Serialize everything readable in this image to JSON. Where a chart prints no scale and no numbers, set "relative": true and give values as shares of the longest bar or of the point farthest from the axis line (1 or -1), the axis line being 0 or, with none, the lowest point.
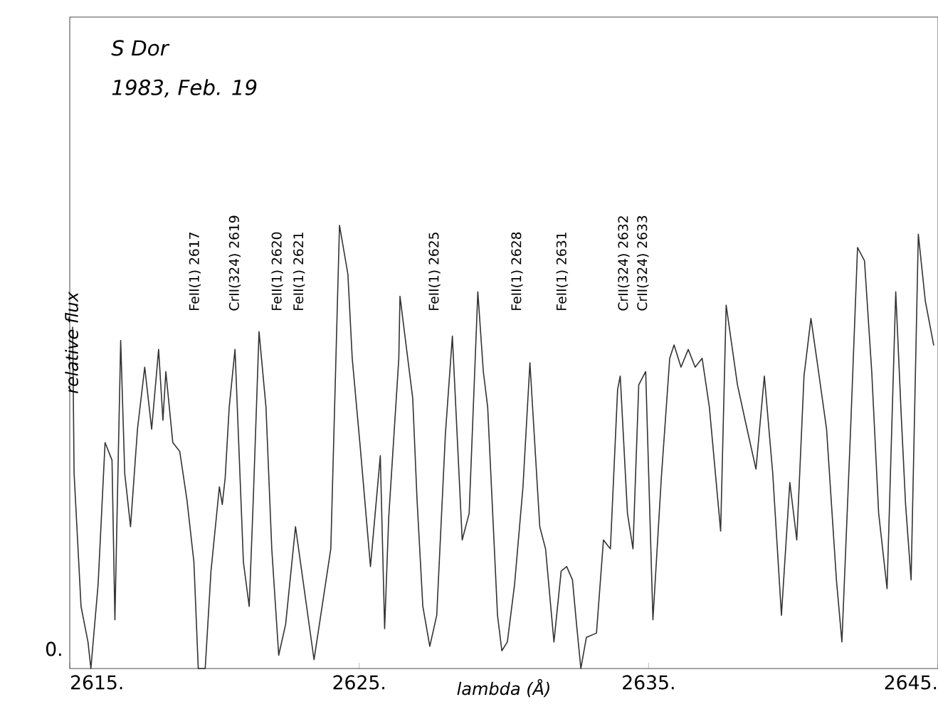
{
  "chart_data": {
    "type": "line",
    "title": "S Dor",
    "subtitle": "1983, Feb. 19",
    "xlabel": "lambda (Å)",
    "ylabel": "relative flux",
    "relative": true,
    "grid": false,
    "marker": "none",
    "line_style": "solid",
    "xlim": [
      2615,
      2645
    ],
    "xticks": [
      {
        "value": 2615,
        "label": "2615."
      },
      {
        "value": 2625,
        "label": "2625."
      },
      {
        "value": 2635,
        "label": "2635."
      },
      {
        "value": 2645,
        "label": "2645."
      }
    ],
    "annotations": [
      "0.",
      "FeII(1) 2617",
      "CrII(324) 2619",
      "FeII(1) 2620",
      "FeII(1) 2621",
      "FeII(1) 2625",
      "FeII(1) 2628",
      "FeII(1) 2631",
      "CrII(324) 2632",
      "CrII(324) 2633"
    ],
    "series": [
      {
        "color": "#333333",
        "x": [
          2615.1,
          2615.15,
          2615.39,
          2615.63,
          2615.73,
          2615.98,
          2616.22,
          2616.46,
          2616.56,
          2616.76,
          2616.9,
          2617.1,
          2617.34,
          2617.59,
          2617.83,
          2618.07,
          2618.22,
          2618.32,
          2618.56,
          2618.8,
          2619.05,
          2619.29,
          2619.44,
          2619.68,
          2619.88,
          2620.17,
          2620.27,
          2620.37,
          2620.51,
          2620.71,
          2621.0,
          2621.2,
          2621.34,
          2621.54,
          2621.78,
          2621.98,
          2622.22,
          2622.46,
          2622.8,
          2623.44,
          2624.02,
          2624.32,
          2624.61,
          2624.76,
          2625.05,
          2625.39,
          2625.73,
          2625.88,
          2626.02,
          2626.37,
          2626.41,
          2626.85,
          2627.0,
          2627.2,
          2627.44,
          2627.68,
          2627.98,
          2628.22,
          2628.56,
          2628.8,
          2629.1,
          2629.29,
          2629.44,
          2629.78,
          2629.93,
          2630.12,
          2630.37,
          2630.66,
          2630.9,
          2631.24,
          2631.44,
          2631.73,
          2631.98,
          2632.17,
          2632.37,
          2632.51,
          2632.66,
          2632.85,
          2633.2,
          2633.44,
          2633.68,
          2633.93,
          2634.02,
          2634.27,
          2634.46,
          2634.66,
          2634.9,
          2635.15,
          2635.44,
          2635.73,
          2635.88,
          2636.12,
          2636.37,
          2636.61,
          2636.85,
          2637.1,
          2637.49,
          2637.68,
          2638.07,
          2638.37,
          2638.71,
          2639.0,
          2639.29,
          2639.59,
          2639.88,
          2640.12,
          2640.37,
          2640.61,
          2640.85,
          2641.15,
          2641.49,
          2641.68,
          2641.98,
          2642.22,
          2642.46,
          2642.71,
          2642.95,
          2643.24,
          2643.54,
          2643.73,
          2643.88,
          2644.07,
          2644.32,
          2644.56,
          2644.85
        ],
        "values": [
          0.77,
          0.44,
          0.14,
          0.06,
          0.0,
          0.19,
          0.51,
          0.47,
          0.11,
          0.74,
          0.44,
          0.32,
          0.54,
          0.68,
          0.54,
          0.72,
          0.56,
          0.67,
          0.51,
          0.49,
          0.38,
          0.24,
          0.0,
          0.0,
          0.22,
          0.41,
          0.37,
          0.43,
          0.59,
          0.72,
          0.24,
          0.14,
          0.38,
          0.76,
          0.59,
          0.27,
          0.03,
          0.1,
          0.32,
          0.02,
          0.27,
          1.0,
          0.89,
          0.7,
          0.49,
          0.23,
          0.48,
          0.09,
          0.34,
          0.7,
          0.84,
          0.61,
          0.38,
          0.14,
          0.05,
          0.12,
          0.53,
          0.75,
          0.29,
          0.35,
          0.85,
          0.67,
          0.59,
          0.12,
          0.04,
          0.06,
          0.19,
          0.41,
          0.69,
          0.32,
          0.27,
          0.06,
          0.22,
          0.23,
          0.2,
          0.1,
          0.0,
          0.07,
          0.08,
          0.29,
          0.27,
          0.63,
          0.66,
          0.35,
          0.27,
          0.64,
          0.67,
          0.11,
          0.43,
          0.7,
          0.73,
          0.68,
          0.72,
          0.68,
          0.7,
          0.59,
          0.31,
          0.82,
          0.64,
          0.55,
          0.45,
          0.66,
          0.44,
          0.12,
          0.42,
          0.29,
          0.66,
          0.79,
          0.68,
          0.54,
          0.2,
          0.06,
          0.54,
          0.95,
          0.92,
          0.67,
          0.35,
          0.18,
          0.85,
          0.57,
          0.37,
          0.2,
          0.98,
          0.83,
          0.73
        ]
      }
    ]
  }
}
